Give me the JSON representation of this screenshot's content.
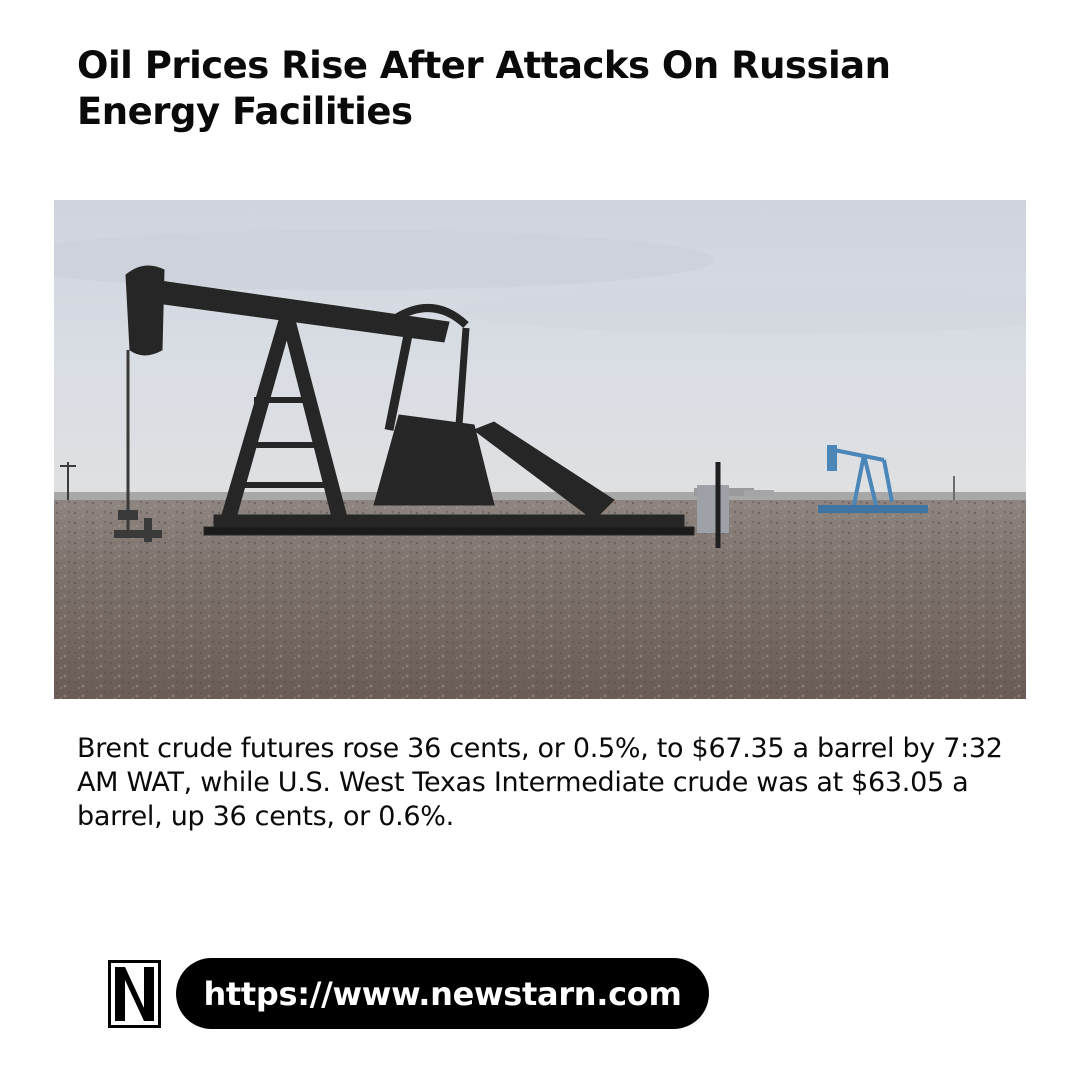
{
  "article": {
    "headline": "Oil Prices Rise After Attacks On Russian Energy Facilities",
    "body": "Brent crude futures rose 36 cents, or 0.5%, to $67.35 a barrel by 7:32 AM WAT, while U.S. West Texas Intermediate crude was at $63.05 a barrel, up 36 cents, or 0.6%."
  },
  "image": {
    "subject": "oil-pumpjack-photo"
  },
  "footer": {
    "logo_letter": "N",
    "url": "https://www.newstarn.com"
  },
  "colors": {
    "text": "#0a0a0a",
    "pill_background": "#000000",
    "pill_text": "#ffffff"
  }
}
